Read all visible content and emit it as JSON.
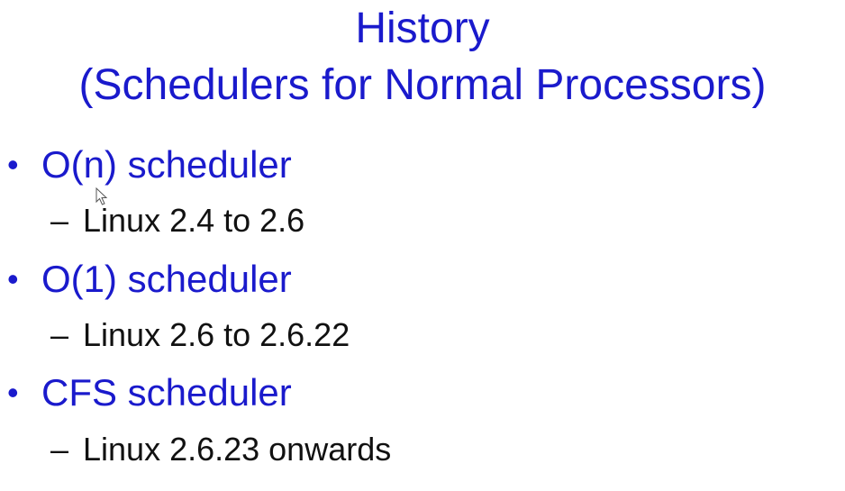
{
  "slide": {
    "title_line1": "History",
    "title_line2": "(Schedulers for Normal Processors)",
    "bullet_symbol": "•",
    "sub_symbol": "–",
    "bullets": [
      {
        "label": "O(n) scheduler",
        "sub": "Linux 2.4 to 2.6"
      },
      {
        "label": "O(1) scheduler",
        "sub": "Linux 2.6 to 2.6.22"
      },
      {
        "label": "CFS scheduler",
        "sub": "Linux 2.6.23 onwards"
      }
    ]
  },
  "colors": {
    "title": "#1a1acc",
    "bullet": "#1a1acc",
    "subtext": "#111111",
    "background": "#ffffff"
  },
  "icons": {
    "cursor": "mouse-pointer-icon"
  }
}
